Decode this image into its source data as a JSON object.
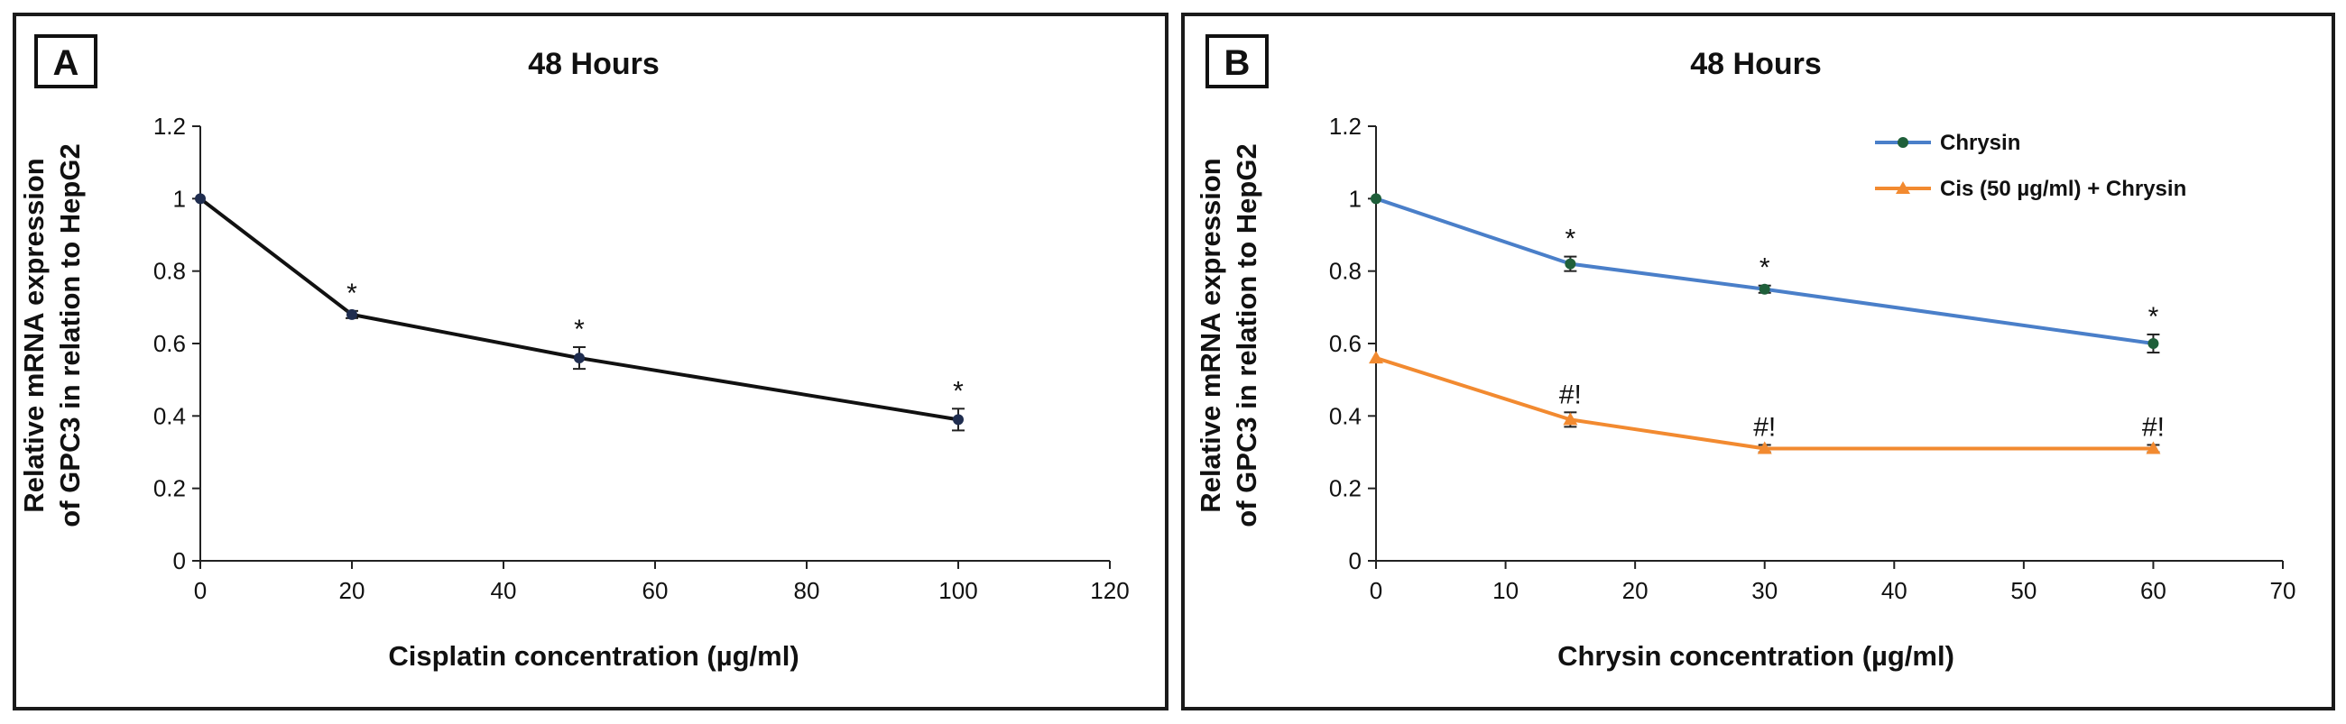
{
  "chart_data": [
    {
      "panel": "A",
      "type": "line",
      "title": "48 Hours",
      "xlabel": "Cisplatin concentration (µg/ml)",
      "ylabel_line1": "Relative mRNA expression",
      "ylabel_line2": "of GPC3 in relation to HepG2",
      "xlim": [
        0,
        120
      ],
      "ylim": [
        0,
        1.2
      ],
      "x_ticks": [
        0,
        20,
        40,
        60,
        80,
        100,
        120
      ],
      "y_ticks": [
        0,
        0.2,
        0.4,
        0.6,
        0.8,
        1,
        1.2
      ],
      "x_tick_labels": [
        "0",
        "20",
        "40",
        "60",
        "80",
        "100",
        "120"
      ],
      "y_tick_labels": [
        "0",
        "0.2",
        "0.4",
        "0.6",
        "0.8",
        "1",
        "1.2"
      ],
      "series": [
        {
          "name": "Cisplatin",
          "color": "#111111",
          "marker_color": "#1f2d4f",
          "marker": "circle",
          "x": [
            0,
            20,
            50,
            100
          ],
          "values": [
            1.0,
            0.68,
            0.56,
            0.39
          ],
          "errors": [
            0,
            0.01,
            0.03,
            0.03
          ],
          "annotations": [
            "",
            "*",
            "*",
            "*"
          ]
        }
      ]
    },
    {
      "panel": "B",
      "type": "line",
      "title": "48 Hours",
      "xlabel": "Chrysin concentration (µg/ml)",
      "ylabel_line1": "Relative mRNA expression",
      "ylabel_line2": "of GPC3 in relation to HepG2",
      "xlim": [
        0,
        70
      ],
      "ylim": [
        0,
        1.2
      ],
      "x_ticks": [
        0,
        10,
        20,
        30,
        40,
        50,
        60,
        70
      ],
      "y_ticks": [
        0,
        0.2,
        0.4,
        0.6,
        0.8,
        1,
        1.2
      ],
      "x_tick_labels": [
        "0",
        "10",
        "20",
        "30",
        "40",
        "50",
        "60",
        "70"
      ],
      "y_tick_labels": [
        "0",
        "0.2",
        "0.4",
        "0.6",
        "0.8",
        "1",
        "1.2"
      ],
      "legend_position": "top-right",
      "series": [
        {
          "name": "Chrysin",
          "color": "#4a7fc9",
          "marker_color": "#1f5f3a",
          "marker": "circle",
          "x": [
            0,
            15,
            30,
            60
          ],
          "values": [
            1.0,
            0.82,
            0.75,
            0.6
          ],
          "errors": [
            0,
            0.02,
            0.01,
            0.025
          ],
          "annotations": [
            "",
            "*",
            "*",
            "*"
          ]
        },
        {
          "name": "Cis (50 µg/ml) + Chrysin",
          "color": "#f28a30",
          "marker_color": "#f28a30",
          "marker": "triangle",
          "x": [
            0,
            15,
            30,
            60
          ],
          "values": [
            0.56,
            0.39,
            0.31,
            0.31
          ],
          "errors": [
            0,
            0.02,
            0.01,
            0.01
          ],
          "annotations": [
            "",
            "#!",
            "#!",
            "#!"
          ]
        }
      ]
    }
  ]
}
